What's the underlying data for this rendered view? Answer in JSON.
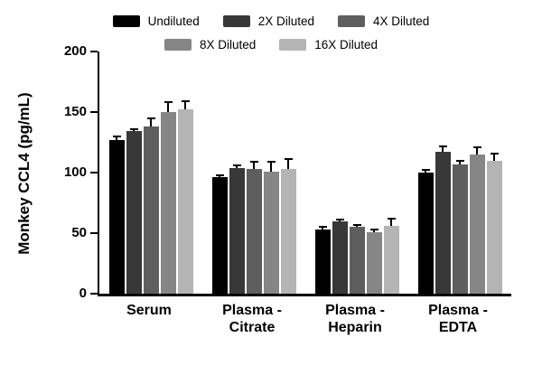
{
  "chart_data": {
    "type": "bar",
    "title": "",
    "ylabel": "Monkey CCL4 (pg/mL)",
    "xlabel": "",
    "ylim": [
      0,
      200
    ],
    "yticks": [
      0,
      50,
      100,
      150,
      200
    ],
    "grid": false,
    "legend_position": "top",
    "categories": [
      "Serum",
      "Plasma -\nCitrate",
      "Plasma -\nHeparin",
      "Plasma -\nEDTA"
    ],
    "series": [
      {
        "name": "Undiluted",
        "color": "#000000",
        "values": [
          127,
          96,
          53,
          100
        ],
        "errors": [
          3,
          2,
          2,
          2
        ]
      },
      {
        "name": "2X Diluted",
        "color": "#383838",
        "values": [
          134,
          104,
          60,
          117
        ],
        "errors": [
          2,
          2,
          1,
          5
        ]
      },
      {
        "name": "4X Diluted",
        "color": "#5e5e5e",
        "values": [
          138,
          103,
          55,
          107
        ],
        "errors": [
          7,
          6,
          2,
          3
        ]
      },
      {
        "name": "8X Diluted",
        "color": "#868686",
        "values": [
          150,
          101,
          51,
          115
        ],
        "errors": [
          8,
          8,
          2,
          6
        ]
      },
      {
        "name": "16X Diluted",
        "color": "#b4b4b4",
        "values": [
          152,
          103,
          56,
          110
        ],
        "errors": [
          7,
          8,
          6,
          6
        ]
      }
    ]
  }
}
